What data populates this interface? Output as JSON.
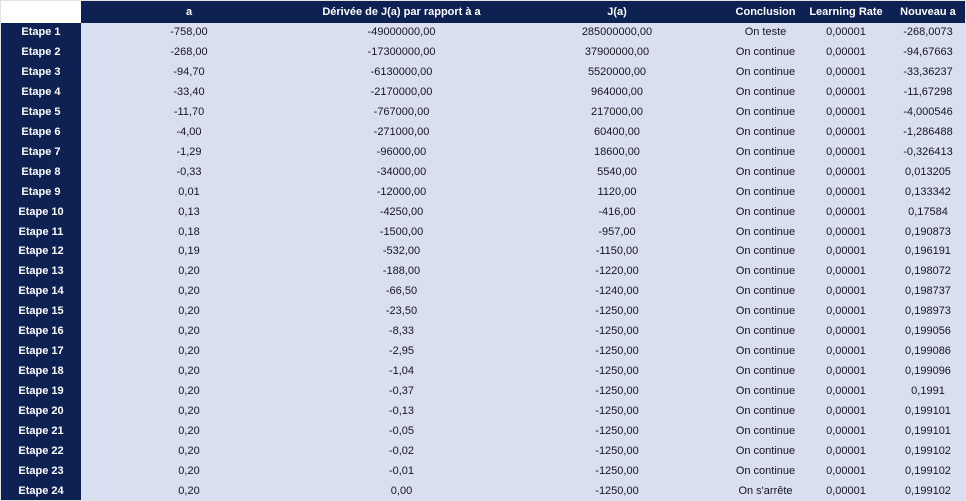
{
  "table": {
    "columns": [
      "",
      "a",
      "Dérivée de J(a) par rapport à a",
      "J(a)",
      "Conclusion",
      "Learning Rate",
      "Nouveau a"
    ],
    "rows": [
      [
        "Etape 1",
        "-758,00",
        "-49000000,00",
        "285000000,00",
        "On teste",
        "0,00001",
        "-268,0073"
      ],
      [
        "Etape 2",
        "-268,00",
        "-17300000,00",
        "37900000,00",
        "On continue",
        "0,00001",
        "-94,67663"
      ],
      [
        "Etape 3",
        "-94,70",
        "-6130000,00",
        "5520000,00",
        "On continue",
        "0,00001",
        "-33,36237"
      ],
      [
        "Etape 4",
        "-33,40",
        "-2170000,00",
        "964000,00",
        "On continue",
        "0,00001",
        "-11,67298"
      ],
      [
        "Etape 5",
        "-11,70",
        "-767000,00",
        "217000,00",
        "On continue",
        "0,00001",
        "-4,000546"
      ],
      [
        "Etape 6",
        "-4,00",
        "-271000,00",
        "60400,00",
        "On continue",
        "0,00001",
        "-1,286488"
      ],
      [
        "Etape 7",
        "-1,29",
        "-96000,00",
        "18600,00",
        "On continue",
        "0,00001",
        "-0,326413"
      ],
      [
        "Etape 8",
        "-0,33",
        "-34000,00",
        "5540,00",
        "On continue",
        "0,00001",
        "0,013205"
      ],
      [
        "Etape 9",
        "0,01",
        "-12000,00",
        "1120,00",
        "On continue",
        "0,00001",
        "0,133342"
      ],
      [
        "Etape 10",
        "0,13",
        "-4250,00",
        "-416,00",
        "On continue",
        "0,00001",
        "0,17584"
      ],
      [
        "Etape 11",
        "0,18",
        "-1500,00",
        "-957,00",
        "On continue",
        "0,00001",
        "0,190873"
      ],
      [
        "Etape 12",
        "0,19",
        "-532,00",
        "-1150,00",
        "On continue",
        "0,00001",
        "0,196191"
      ],
      [
        "Etape 13",
        "0,20",
        "-188,00",
        "-1220,00",
        "On continue",
        "0,00001",
        "0,198072"
      ],
      [
        "Etape 14",
        "0,20",
        "-66,50",
        "-1240,00",
        "On continue",
        "0,00001",
        "0,198737"
      ],
      [
        "Etape 15",
        "0,20",
        "-23,50",
        "-1250,00",
        "On continue",
        "0,00001",
        "0,198973"
      ],
      [
        "Etape 16",
        "0,20",
        "-8,33",
        "-1250,00",
        "On continue",
        "0,00001",
        "0,199056"
      ],
      [
        "Etape 17",
        "0,20",
        "-2,95",
        "-1250,00",
        "On continue",
        "0,00001",
        "0,199086"
      ],
      [
        "Etape 18",
        "0,20",
        "-1,04",
        "-1250,00",
        "On continue",
        "0,00001",
        "0,199096"
      ],
      [
        "Etape 19",
        "0,20",
        "-0,37",
        "-1250,00",
        "On continue",
        "0,00001",
        "0,1991"
      ],
      [
        "Etape 20",
        "0,20",
        "-0,13",
        "-1250,00",
        "On continue",
        "0,00001",
        "0,199101"
      ],
      [
        "Etape 21",
        "0,20",
        "-0,05",
        "-1250,00",
        "On continue",
        "0,00001",
        "0,199101"
      ],
      [
        "Etape 22",
        "0,20",
        "-0,02",
        "-1250,00",
        "On continue",
        "0,00001",
        "0,199102"
      ],
      [
        "Etape 23",
        "0,20",
        "-0,01",
        "-1250,00",
        "On continue",
        "0,00001",
        "0,199102"
      ],
      [
        "Etape 24",
        "0,20",
        "0,00",
        "-1250,00",
        "On s'arrête",
        "0,00001",
        "0,199102"
      ]
    ]
  },
  "colors": {
    "header_bg": "#0d2153",
    "row_label_bg": "#0d2153",
    "cell_bg": "#dadef1",
    "header_text": "#ffffff",
    "cell_text": "#161620",
    "corner_bg": "#ffffff"
  }
}
